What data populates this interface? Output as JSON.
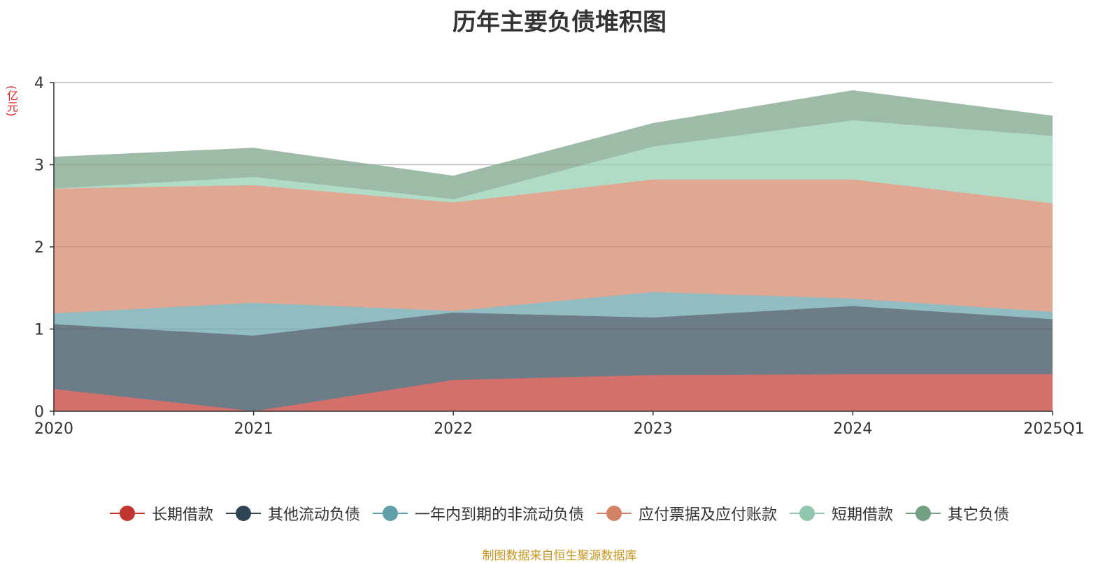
{
  "chart_data": {
    "type": "area",
    "stacked": true,
    "title": "历年主要负债堆积图",
    "ylabel": "(亿元)",
    "xlabel": "",
    "categories": [
      "2020",
      "2021",
      "2022",
      "2023",
      "2024",
      "2025Q1"
    ],
    "ylim": [
      0,
      4
    ],
    "yticks": [
      0,
      1,
      2,
      3,
      4
    ],
    "grid": true,
    "series": [
      {
        "name": "长期借款",
        "color": "#c23531",
        "fill": "#d4706b",
        "values": [
          0.27,
          0.0,
          0.38,
          0.44,
          0.45,
          0.45
        ]
      },
      {
        "name": "其他流动负债",
        "color": "#2f4554",
        "fill": "#6d7d88",
        "values": [
          0.79,
          0.92,
          0.82,
          0.7,
          0.83,
          0.67
        ]
      },
      {
        "name": "一年内到期的非流动负债",
        "color": "#61a0a8",
        "fill": "#91bcc2",
        "values": [
          0.13,
          0.4,
          0.02,
          0.31,
          0.09,
          0.09
        ]
      },
      {
        "name": "应付票据及应付账款",
        "color": "#d48265",
        "fill": "#e0a893",
        "values": [
          1.52,
          1.43,
          1.32,
          1.37,
          1.45,
          1.32
        ]
      },
      {
        "name": "短期借款",
        "color": "#91c7ae",
        "fill": "#b0dbc6",
        "values": [
          0.0,
          0.1,
          0.04,
          0.4,
          0.72,
          0.82
        ]
      },
      {
        "name": "其它负债",
        "color": "#749f83",
        "fill": "#9dbba7",
        "values": [
          0.38,
          0.35,
          0.28,
          0.28,
          0.36,
          0.24
        ]
      }
    ],
    "legend_position": "bottom-center"
  },
  "source": "制图数据来自恒生聚源数据库"
}
